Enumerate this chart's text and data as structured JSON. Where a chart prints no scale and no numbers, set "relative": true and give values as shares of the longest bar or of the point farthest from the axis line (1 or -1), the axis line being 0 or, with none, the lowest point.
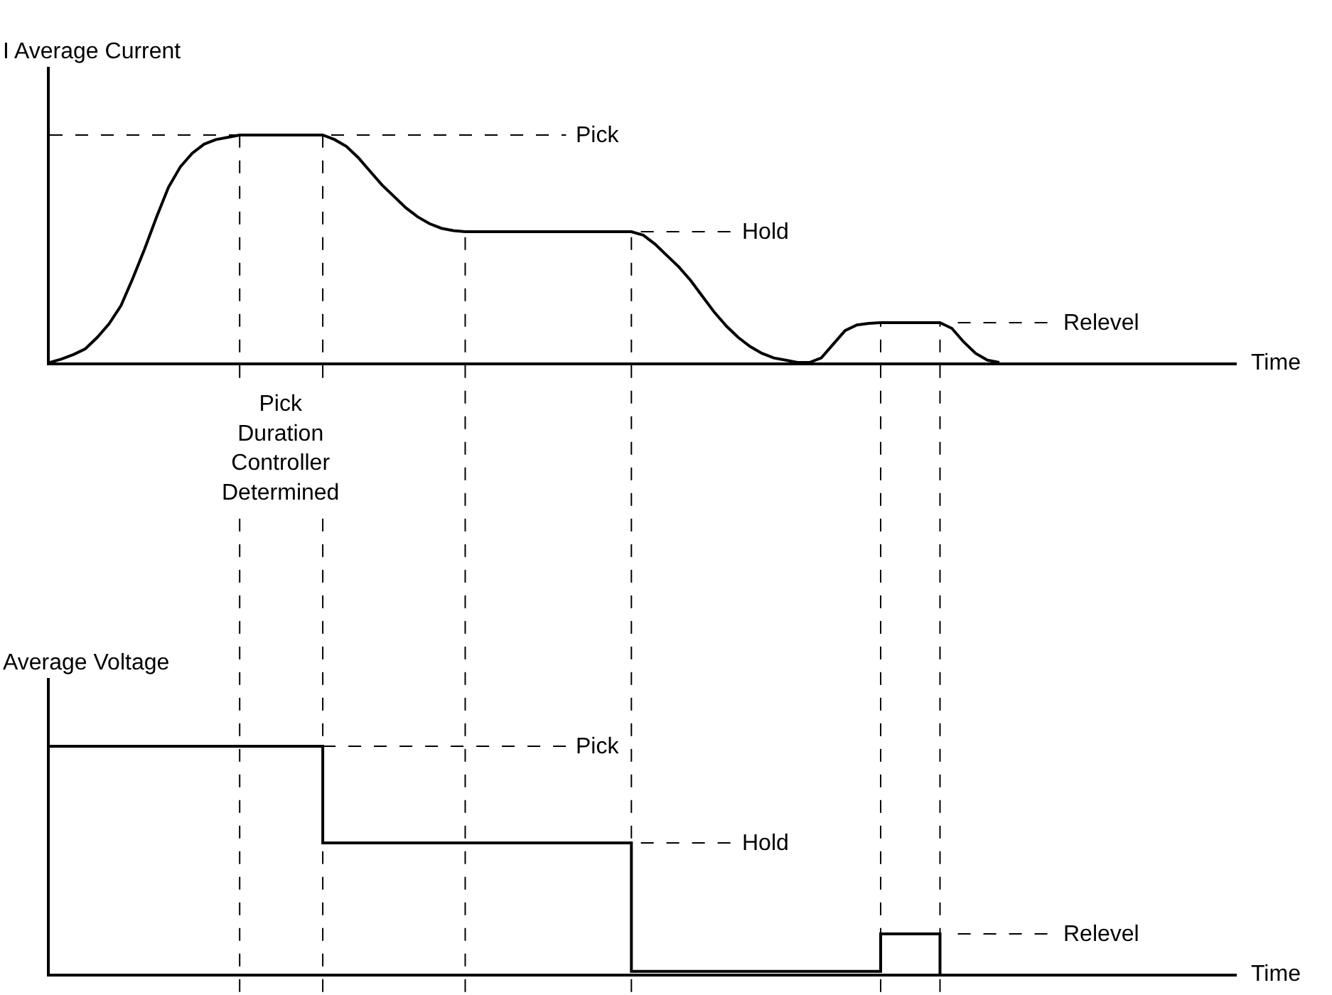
{
  "chart_data": [
    {
      "type": "line",
      "ylabel": "I Average Current",
      "xlabel": "Time",
      "relative": true,
      "grid": "x",
      "color": "#000000",
      "line_style": "solid",
      "marker": "none",
      "categories": [
        null,
        null,
        null,
        null,
        null,
        null,
        null,
        null,
        null,
        null,
        null,
        null,
        null,
        null,
        null,
        null,
        null,
        null,
        null,
        null,
        null,
        null,
        null,
        null,
        null,
        null,
        null,
        null,
        null,
        null,
        null,
        null,
        null,
        null,
        null,
        null,
        null,
        null,
        null,
        null,
        null,
        null,
        null,
        null,
        null,
        null,
        null,
        null,
        null,
        null,
        null,
        null,
        null,
        null,
        null,
        null,
        null,
        null,
        null,
        null,
        null,
        null,
        null,
        null,
        null,
        null,
        null,
        null,
        null,
        null,
        null,
        null,
        null,
        null,
        null,
        null,
        null,
        null,
        null,
        null,
        null,
        null,
        null,
        null,
        null,
        null,
        null,
        null,
        null,
        null,
        null,
        null,
        null,
        null,
        null,
        null,
        null,
        null,
        null,
        null,
        null
      ],
      "values": [
        0,
        0.015,
        0.035,
        0.06,
        0.11,
        0.17,
        0.25,
        0.37,
        0.5,
        0.64,
        0.77,
        0.86,
        0.92,
        0.96,
        0.98,
        0.99,
        1,
        1,
        1,
        1,
        1,
        1,
        1,
        1,
        0.98,
        0.95,
        0.9,
        0.84,
        0.78,
        0.73,
        0.68,
        0.64,
        0.61,
        0.59,
        0.58,
        0.575,
        0.575,
        0.575,
        0.575,
        0.575,
        0.575,
        0.575,
        0.575,
        0.575,
        0.575,
        0.575,
        0.575,
        0.575,
        0.575,
        0.575,
        0.56,
        0.52,
        0.47,
        0.42,
        0.36,
        0.29,
        0.22,
        0.16,
        0.11,
        0.07,
        0.04,
        0.02,
        0.01,
        0,
        0,
        0.02,
        0.08,
        0.14,
        0.165,
        0.172,
        0.175,
        0.175,
        0.175,
        0.175,
        0.175,
        0.175,
        0.15,
        0.09,
        0.04,
        0.01,
        0,
        null,
        null,
        null,
        null,
        null,
        null,
        null,
        null,
        null,
        null,
        null,
        null,
        null,
        null,
        null,
        null,
        null,
        null,
        null,
        null
      ],
      "ref_lines": [
        {
          "axis": "y",
          "value": 1,
          "label": "Pick",
          "line_style": "dashed"
        },
        {
          "axis": "y",
          "value": 0.575,
          "label": "Hold",
          "line_style": "dashed"
        },
        {
          "axis": "y",
          "value": 0.175,
          "label": "Relevel",
          "line_style": "dashed"
        }
      ],
      "annotations": [
        "Pick\nDuration\nController\nDetermined"
      ]
    },
    {
      "type": "step",
      "ylabel": "Average Voltage",
      "xlabel": "Time",
      "relative": true,
      "color": "#000000",
      "line_style": "solid",
      "marker": "none",
      "categories": [
        null,
        null,
        null,
        null,
        null,
        null,
        null,
        null,
        null,
        null,
        null,
        null,
        null,
        null,
        null,
        null,
        null,
        null,
        null,
        null,
        null,
        null,
        null,
        null,
        null,
        null,
        null,
        null,
        null,
        null,
        null,
        null,
        null,
        null,
        null,
        null,
        null,
        null,
        null,
        null,
        null,
        null,
        null,
        null,
        null,
        null,
        null,
        null,
        null,
        null,
        null,
        null,
        null,
        null,
        null,
        null,
        null,
        null,
        null,
        null,
        null,
        null,
        null,
        null,
        null,
        null,
        null,
        null,
        null,
        null,
        null,
        null,
        null,
        null,
        null,
        null,
        null,
        null,
        null,
        null,
        null,
        null,
        null,
        null,
        null,
        null,
        null,
        null,
        null,
        null,
        null,
        null,
        null,
        null,
        null,
        null,
        null,
        null,
        null,
        null,
        null
      ],
      "values": [
        1,
        1,
        1,
        1,
        1,
        1,
        1,
        1,
        1,
        1,
        1,
        1,
        1,
        1,
        1,
        1,
        1,
        1,
        1,
        1,
        1,
        1,
        1,
        0.575,
        0.575,
        0.575,
        0.575,
        0.575,
        0.575,
        0.575,
        0.575,
        0.575,
        0.575,
        0.575,
        0.575,
        0.575,
        0.575,
        0.575,
        0.575,
        0.575,
        0.575,
        0.575,
        0.575,
        0.575,
        0.575,
        0.575,
        0.575,
        0.575,
        0.575,
        0.01,
        0.01,
        0.01,
        0.01,
        0.01,
        0.01,
        0.01,
        0.01,
        0.01,
        0.01,
        0.01,
        0.01,
        0.01,
        0.01,
        0.01,
        0.01,
        0.01,
        0.01,
        0.01,
        0.01,
        0.01,
        0.175,
        0.175,
        0.175,
        0.175,
        0.175,
        0,
        null,
        null,
        null,
        null,
        null,
        null,
        null,
        null,
        null,
        null,
        null,
        null,
        null,
        null,
        null,
        null,
        null,
        null,
        null,
        null,
        null,
        null,
        null,
        null,
        null
      ],
      "ref_lines": [
        {
          "axis": "y",
          "value": 1,
          "label": "Pick",
          "line_style": "dashed"
        },
        {
          "axis": "y",
          "value": 0.575,
          "label": "Hold",
          "line_style": "dashed"
        },
        {
          "axis": "y",
          "value": 0.175,
          "label": "Relevel",
          "line_style": "dashed"
        }
      ]
    }
  ]
}
